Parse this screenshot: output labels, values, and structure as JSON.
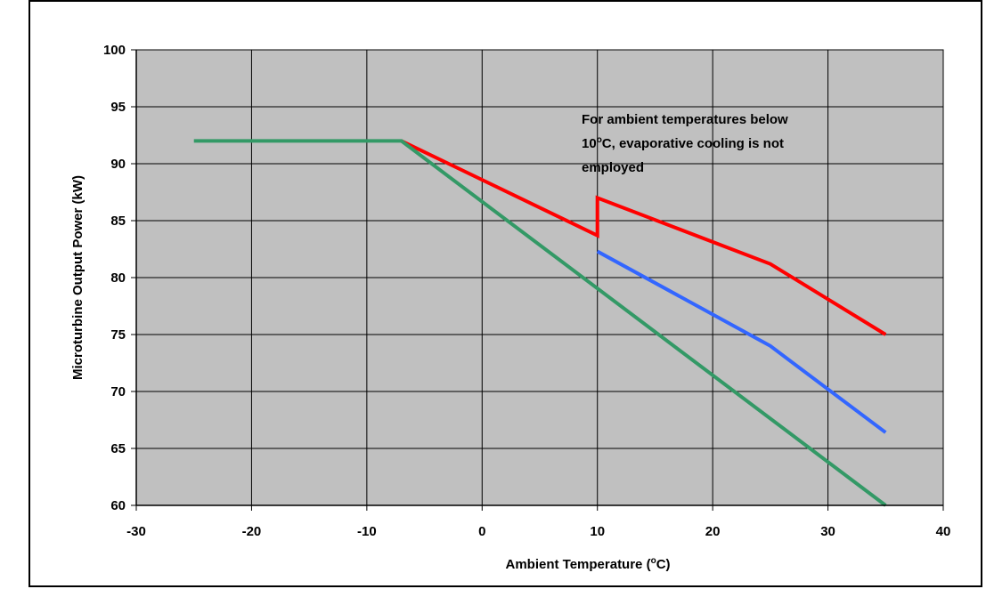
{
  "chart_data": {
    "type": "line",
    "xlabel_main": "Ambient Temperature (",
    "xlabel_sup": "o",
    "xlabel_end": "C)",
    "ylabel": "Microturbine Output Power (kW)",
    "xlim": [
      -30,
      40
    ],
    "ylim": [
      60,
      100
    ],
    "x_ticks": [
      -30,
      -20,
      -10,
      0,
      10,
      20,
      30,
      40
    ],
    "y_ticks": [
      60,
      65,
      70,
      75,
      80,
      85,
      90,
      95,
      100
    ],
    "grid": true,
    "plot_background": "#c0c0c0",
    "annotation": {
      "line1": "For ambient temperatures below",
      "line2_pre": "10",
      "line2_sup": "o",
      "line2_post": "C, evaporative cooling is not",
      "line3": "employed"
    },
    "series": [
      {
        "color": "#ff0000",
        "x": [
          -7,
          10,
          10,
          25,
          35
        ],
        "y": [
          92,
          83.7,
          87,
          81.2,
          75
        ]
      },
      {
        "color": "#3366ff",
        "x": [
          10,
          25,
          35
        ],
        "y": [
          82.3,
          74,
          66.4
        ]
      },
      {
        "color": "#339966",
        "x": [
          -25,
          -7,
          35
        ],
        "y": [
          92,
          92,
          60
        ]
      }
    ]
  }
}
